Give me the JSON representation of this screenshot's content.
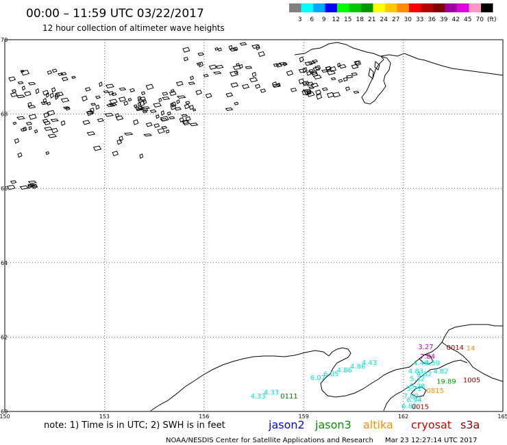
{
  "header": {
    "title": "00:00 – 11:59 UTC 03/22/2017",
    "subtitle": "12 hour collection of altimeter wave heights"
  },
  "color_scale": {
    "labels": [
      "3",
      "6",
      "9",
      "12",
      "15",
      "18",
      "21",
      "24",
      "27",
      "30",
      "33",
      "36",
      "39",
      "42",
      "45",
      "70",
      "(ft)"
    ],
    "colors": [
      "#808080",
      "#00ffff",
      "#00a8ff",
      "#0000ff",
      "#00ff00",
      "#00c800",
      "#009600",
      "#ffff00",
      "#ffc800",
      "#ff8c00",
      "#ff0000",
      "#b40000",
      "#800000",
      "#a000a0",
      "#e000e0",
      "#ff96c8",
      "#000000"
    ]
  },
  "map": {
    "lon_labels": [
      "150",
      "153",
      "156",
      "159",
      "162",
      "165"
    ],
    "lat_labels": [
      "70",
      "68",
      "66",
      "64",
      "62",
      "60"
    ],
    "lon_values": [
      150,
      153,
      156,
      159,
      162,
      165
    ],
    "lat_values": [
      70,
      68,
      66,
      64,
      62,
      60
    ]
  },
  "annotations": [
    {
      "text": "4.33",
      "color": "#00e0e0",
      "lon": 157.4,
      "lat": 60.35
    },
    {
      "text": "4.33",
      "color": "#00e0e0",
      "lon": 157.8,
      "lat": 60.45
    },
    {
      "text": "0111",
      "color": "#007000",
      "lon": 158.3,
      "lat": 60.35
    },
    {
      "text": "6.07",
      "color": "#00e0e0",
      "lon": 159.2,
      "lat": 60.85
    },
    {
      "text": "6.05",
      "color": "#00e0e0",
      "lon": 159.6,
      "lat": 60.95
    },
    {
      "text": "4.86",
      "color": "#00e0e0",
      "lon": 160.0,
      "lat": 61.05
    },
    {
      "text": "4.86",
      "color": "#00e0e0",
      "lon": 160.4,
      "lat": 61.15
    },
    {
      "text": "4.43",
      "color": "#00e0e0",
      "lon": 160.75,
      "lat": 61.25
    },
    {
      "text": "6.82",
      "color": "#00e0e0",
      "lon": 161.95,
      "lat": 60.08
    },
    {
      "text": "7.89",
      "color": "#00e0e0",
      "lon": 162.0,
      "lat": 60.35
    },
    {
      "text": "6.94",
      "color": "#00e0e0",
      "lon": 162.1,
      "lat": 60.25
    },
    {
      "text": "0015",
      "color": "#8b0000",
      "lon": 162.25,
      "lat": 60.06
    },
    {
      "text": "5.71",
      "color": "#00e0e0",
      "lon": 162.1,
      "lat": 60.55
    },
    {
      "text": "5.28",
      "color": "#00e0e0",
      "lon": 162.2,
      "lat": 60.62
    },
    {
      "text": "0815",
      "color": "#ff8c00",
      "lon": 162.7,
      "lat": 60.5
    },
    {
      "text": "5.32",
      "color": "#00e0e0",
      "lon": 162.2,
      "lat": 60.82
    },
    {
      "text": "4.82",
      "color": "#00e0e0",
      "lon": 162.4,
      "lat": 60.95
    },
    {
      "text": "4.83",
      "color": "#00e0e0",
      "lon": 162.15,
      "lat": 61.02
    },
    {
      "text": "4.82",
      "color": "#00e0e0",
      "lon": 162.9,
      "lat": 61.02
    },
    {
      "text": "19.89",
      "color": "#00a000",
      "lon": 163.0,
      "lat": 60.75
    },
    {
      "text": "1005",
      "color": "#8b0000",
      "lon": 163.8,
      "lat": 60.78
    },
    {
      "text": "4.49",
      "color": "#00e0e0",
      "lon": 162.3,
      "lat": 61.24
    },
    {
      "text": "4.59",
      "color": "#00e0e0",
      "lon": 162.65,
      "lat": 61.24
    },
    {
      "text": "7.84",
      "color": "#c000c0",
      "lon": 162.5,
      "lat": 61.42
    },
    {
      "text": "3.27",
      "color": "#c000c0",
      "lon": 162.45,
      "lat": 61.68
    },
    {
      "text": "0014",
      "color": "#8b0000",
      "lon": 163.3,
      "lat": 61.66
    },
    {
      "text": "14",
      "color": "#ff8c00",
      "lon": 163.9,
      "lat": 61.64
    }
  ],
  "legend": {
    "note": "note: 1) Time is in UTC; 2) SWH is in feet",
    "missions": [
      {
        "name": "jason2",
        "color": "#0000ff"
      },
      {
        "name": "jason3",
        "color": "#009000"
      },
      {
        "name": "altika",
        "color": "#ff8c00"
      },
      {
        "name": "cryosat",
        "color": "#d00000"
      },
      {
        "name": "s3a",
        "color": "#8b0000"
      }
    ]
  },
  "footer": {
    "credit": "NOAA/NESDIS Center for Satellite Applications and Research",
    "timestamp": "Mar 23 12:27:14 UTC 2017"
  }
}
